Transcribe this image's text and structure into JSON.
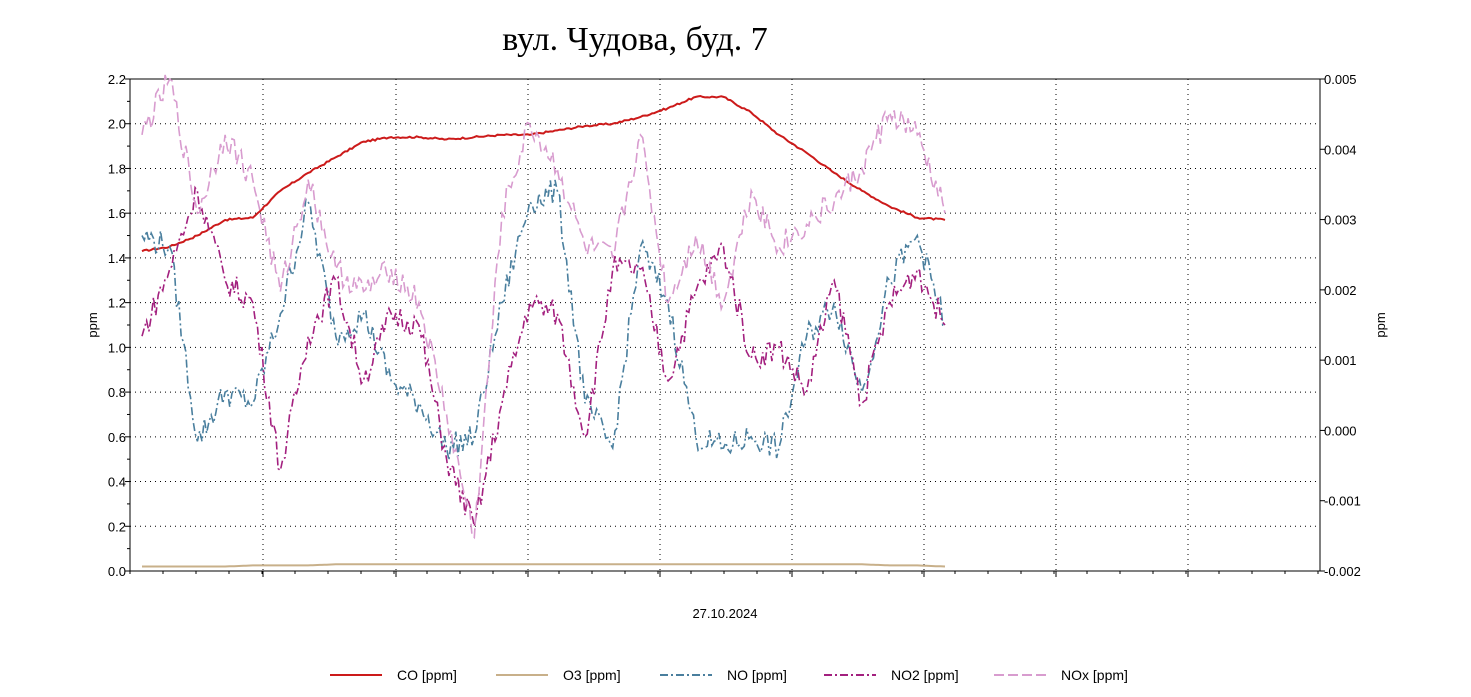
{
  "chart_data": {
    "type": "line",
    "title": "вул. Чудова, буд. 7",
    "xlabel": "27.10.2024",
    "ylabel_left": "ppm",
    "ylabel_right": "ppm",
    "ylim_left": [
      0,
      2.2
    ],
    "ylim_right": [
      -0.002,
      0.005
    ],
    "yticks_left": [
      "0.0",
      "0.2",
      "0.4",
      "0.6",
      "0.8",
      "1.0",
      "1.2",
      "1.4",
      "1.6",
      "1.8",
      "2.0",
      "2.2"
    ],
    "yticks_right": [
      "-0.002",
      "-0.001",
      "0.000",
      "0.001",
      "0.002",
      "0.003",
      "0.004",
      "0.005"
    ],
    "grid": true,
    "legend_position": "bottom",
    "x_hours": [
      0,
      0.5,
      1,
      1.5,
      2,
      2.5,
      3,
      3.5,
      4,
      4.5,
      5,
      5.5,
      6,
      6.5,
      7,
      7.5,
      8,
      8.5,
      9,
      9.5,
      10,
      10.5,
      11,
      11.5,
      12,
      12.5,
      13,
      13.5,
      14,
      14.5
    ],
    "series": [
      {
        "name": "CO [ppm]",
        "color": "#cc1a1a",
        "dash": "solid",
        "axis": "left",
        "values": [
          1.43,
          1.45,
          1.5,
          1.57,
          1.58,
          1.7,
          1.78,
          1.85,
          1.92,
          1.94,
          1.94,
          1.93,
          1.94,
          1.95,
          1.95,
          1.97,
          1.99,
          2.0,
          2.03,
          2.07,
          2.12,
          2.12,
          2.05,
          1.95,
          1.87,
          1.78,
          1.7,
          1.63,
          1.58,
          1.57
        ]
      },
      {
        "name": "O3 [ppm]",
        "color": "#c8b08a",
        "dash": "solid",
        "axis": "left",
        "values": [
          0.02,
          0.02,
          0.02,
          0.02,
          0.025,
          0.025,
          0.025,
          0.03,
          0.03,
          0.03,
          0.03,
          0.03,
          0.03,
          0.03,
          0.03,
          0.03,
          0.03,
          0.03,
          0.03,
          0.03,
          0.03,
          0.03,
          0.03,
          0.03,
          0.03,
          0.03,
          0.03,
          0.025,
          0.025,
          0.02
        ]
      },
      {
        "name": "NO [ppm]",
        "color": "#4a7f9e",
        "dash": "8,3,2,3",
        "axis": "left",
        "values": [
          1.5,
          1.45,
          0.58,
          0.8,
          0.75,
          1.15,
          1.65,
          1.05,
          1.15,
          0.85,
          0.75,
          0.55,
          0.6,
          1.2,
          1.65,
          1.7,
          0.75,
          0.55,
          1.45,
          1.2,
          0.6,
          0.55,
          0.6,
          0.55,
          1.05,
          1.2,
          0.8,
          1.3,
          1.5,
          1.1
        ]
      },
      {
        "name": "NO2 [ppm]",
        "color": "#a3207f",
        "dash": "8,3,2,3",
        "axis": "left",
        "values": [
          1.05,
          1.35,
          1.7,
          1.3,
          1.2,
          0.45,
          1.05,
          1.3,
          0.85,
          1.15,
          1.1,
          0.5,
          0.2,
          0.75,
          1.2,
          1.15,
          0.6,
          1.35,
          1.35,
          0.85,
          1.25,
          1.45,
          0.95,
          1.0,
          0.8,
          1.3,
          0.75,
          1.2,
          1.35,
          1.1
        ]
      },
      {
        "name": "NOx [ppm]",
        "color": "#d89ccf",
        "dash": "10,4",
        "axis": "left",
        "values": [
          1.95,
          2.2,
          1.6,
          1.95,
          1.75,
          1.25,
          1.75,
          1.35,
          1.25,
          1.35,
          1.2,
          0.7,
          0.15,
          1.6,
          2.0,
          1.8,
          1.45,
          1.4,
          1.95,
          1.2,
          1.5,
          1.2,
          1.7,
          1.45,
          1.55,
          1.65,
          1.8,
          2.05,
          1.95,
          1.6
        ]
      }
    ]
  }
}
